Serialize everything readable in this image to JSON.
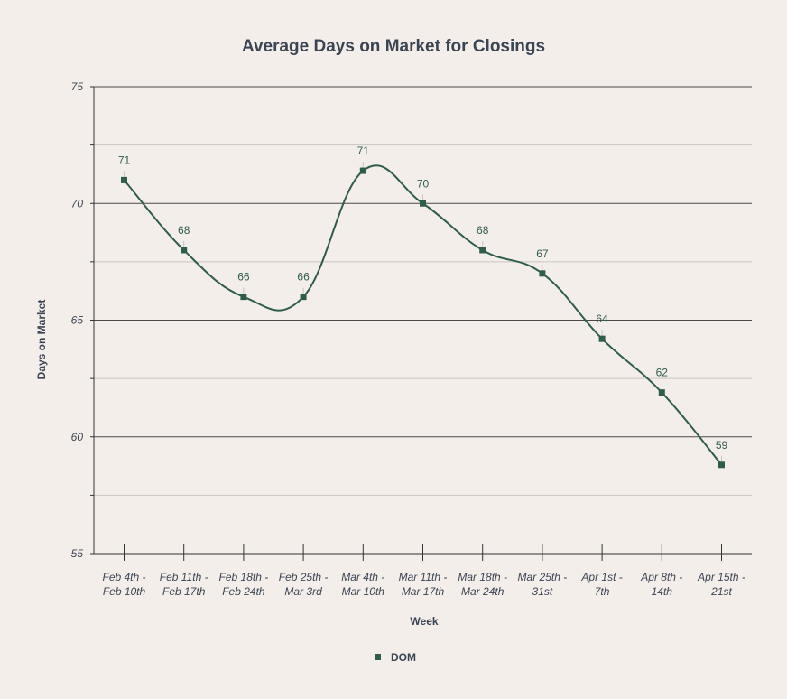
{
  "chart_data": {
    "type": "line",
    "title": "Average Days on Market for Closings",
    "xlabel": "Week",
    "ylabel": "Days on Market",
    "ylim": [
      55,
      75
    ],
    "yticks": [
      "55",
      "60",
      "65",
      "70",
      "75"
    ],
    "categories": [
      [
        "Feb 4th -",
        "Feb 10th"
      ],
      [
        "Feb 11th -",
        "Feb 17th"
      ],
      [
        "Feb 18th -",
        "Feb 24th"
      ],
      [
        "Feb 25th -",
        "Mar 3rd"
      ],
      [
        "Mar 4th -",
        "Mar 10th"
      ],
      [
        "Mar 11th -",
        "Mar 17th"
      ],
      [
        "Mar 18th -",
        "Mar 24th"
      ],
      [
        "Mar 25th -",
        "31st"
      ],
      [
        "Apr 1st -",
        "7th"
      ],
      [
        "Apr 8th -",
        "14th"
      ],
      [
        "Apr 15th -",
        "21st"
      ]
    ],
    "series": [
      {
        "name": "DOM",
        "color": "#2f5d4b",
        "values": [
          71,
          68,
          66,
          66,
          71.4,
          70,
          68,
          67,
          64.2,
          61.9,
          58.8
        ],
        "labels": [
          "71",
          "68",
          "66",
          "66",
          "71",
          "70",
          "68",
          "67",
          "64",
          "62",
          "59"
        ]
      }
    ],
    "grid": true,
    "legend_position": "bottom"
  }
}
